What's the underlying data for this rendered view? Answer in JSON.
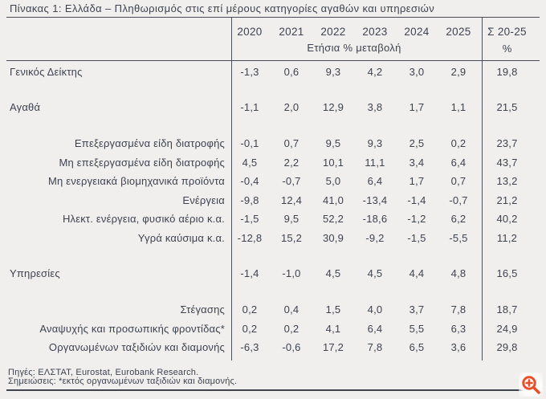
{
  "title": "Πίνακας 1: Ελλάδα – Πληθωρισμός στις επί μέρους κατηγορίες αγαθών και υπηρεσιών",
  "table": {
    "year_headers": [
      "2020",
      "2021",
      "2022",
      "2023",
      "2024",
      "2025"
    ],
    "subheader": "Ετήσια % μεταβολή",
    "sum_header_line1": "Σ 20-25",
    "sum_header_line2": "%",
    "rows": [
      {
        "label": "Γενικός Δείκτης",
        "level": "main",
        "values": [
          "-1,3",
          "0,6",
          "9,3",
          "4,2",
          "3,0",
          "2,9"
        ],
        "sum": "19,8"
      },
      {
        "label": "Αγαθά",
        "level": "main",
        "values": [
          "-1,1",
          "2,0",
          "12,9",
          "3,8",
          "1,7",
          "1,1"
        ],
        "sum": "21,5"
      },
      {
        "label": "Επεξεργασμένα είδη διατροφής",
        "level": "sub",
        "values": [
          "-0,1",
          "0,7",
          "9,5",
          "9,3",
          "2,5",
          "0,2"
        ],
        "sum": "23,7"
      },
      {
        "label": "Μη επεξεργασμένα είδη διατροφής",
        "level": "sub",
        "values": [
          "4,5",
          "2,2",
          "10,1",
          "11,1",
          "3,4",
          "6,4"
        ],
        "sum": "43,7"
      },
      {
        "label": "Μη ενεργειακά βιομηχανικά προϊόντα",
        "level": "sub",
        "values": [
          "-0,4",
          "-0,7",
          "5,0",
          "6,4",
          "1,7",
          "0,7"
        ],
        "sum": "13,2"
      },
      {
        "label": "Ενέργεια",
        "level": "sub",
        "values": [
          "-9,8",
          "12,4",
          "41,0",
          "-13,4",
          "-1,4",
          "-0,7"
        ],
        "sum": "21,2"
      },
      {
        "label": "Ηλεκτ. ενέργεια, φυσικό αέριο κ.α.",
        "level": "sub",
        "values": [
          "-1,5",
          "9,5",
          "52,2",
          "-18,6",
          "-1,2",
          "6,2"
        ],
        "sum": "40,2"
      },
      {
        "label": "Υγρά καύσιμα κ.α.",
        "level": "sub",
        "values": [
          "-12,8",
          "15,2",
          "30,9",
          "-9,2",
          "-1,5",
          "-5,5"
        ],
        "sum": "11,2"
      },
      {
        "label": "Υπηρεσίες",
        "level": "main",
        "values": [
          "-1,4",
          "-1,0",
          "4,5",
          "4,5",
          "4,4",
          "4,8"
        ],
        "sum": "16,5"
      },
      {
        "label": "Στέγασης",
        "level": "sub",
        "values": [
          "0,2",
          "0,4",
          "1,5",
          "4,0",
          "3,7",
          "7,8"
        ],
        "sum": "18,7"
      },
      {
        "label": "Αναψυχής και προσωπικής φροντίδας*",
        "level": "sub",
        "values": [
          "0,2",
          "0,2",
          "4,1",
          "6,4",
          "5,5",
          "6,3"
        ],
        "sum": "24,9"
      },
      {
        "label": "Οργανωμένων ταξιδιών και διαμονής",
        "level": "sub",
        "values": [
          "-6,3",
          "-0,6",
          "17,2",
          "7,8",
          "6,5",
          "3,6"
        ],
        "sum": "29,8"
      }
    ]
  },
  "footer": {
    "sources": "Πηγές: ΕΛΣΤΑΤ, Eurostat, Eurobank Research.",
    "notes": "Σημειώσεις: *εκτός οργανωμένων ταξιδιών και διαμονής."
  },
  "icons": {
    "zoom_in": "zoom-in-magnifier-plus"
  },
  "colors": {
    "background": "#f0efed",
    "text": "#3e4350",
    "line": "#464b56",
    "accent": "#e8502a"
  },
  "chart_data": {
    "type": "table",
    "title": "Πίνακας 1: Ελλάδα – Πληθωρισμός στις επί μέρους κατηγορίες αγαθών και υπηρεσιών",
    "columns": [
      "2020",
      "2021",
      "2022",
      "2023",
      "2024",
      "2025",
      "Σ 20-25 %"
    ],
    "column_group_label": "Ετήσια % μεταβολή",
    "rows": [
      {
        "label": "Γενικός Δείκτης",
        "level": "main",
        "values": [
          -1.3,
          0.6,
          9.3,
          4.2,
          3.0,
          2.9
        ],
        "sum_20_25": 19.8
      },
      {
        "label": "Αγαθά",
        "level": "main",
        "values": [
          -1.1,
          2.0,
          12.9,
          3.8,
          1.7,
          1.1
        ],
        "sum_20_25": 21.5
      },
      {
        "label": "Επεξεργασμένα είδη διατροφής",
        "level": "sub",
        "values": [
          -0.1,
          0.7,
          9.5,
          9.3,
          2.5,
          0.2
        ],
        "sum_20_25": 23.7
      },
      {
        "label": "Μη επεξεργασμένα είδη διατροφής",
        "level": "sub",
        "values": [
          4.5,
          2.2,
          10.1,
          11.1,
          3.4,
          6.4
        ],
        "sum_20_25": 43.7
      },
      {
        "label": "Μη ενεργειακά βιομηχανικά προϊόντα",
        "level": "sub",
        "values": [
          -0.4,
          -0.7,
          5.0,
          6.4,
          1.7,
          0.7
        ],
        "sum_20_25": 13.2
      },
      {
        "label": "Ενέργεια",
        "level": "sub",
        "values": [
          -9.8,
          12.4,
          41.0,
          -13.4,
          -1.4,
          -0.7
        ],
        "sum_20_25": 21.2
      },
      {
        "label": "Ηλεκτ. ενέργεια, φυσικό αέριο κ.α.",
        "level": "sub",
        "values": [
          -1.5,
          9.5,
          52.2,
          -18.6,
          -1.2,
          6.2
        ],
        "sum_20_25": 40.2
      },
      {
        "label": "Υγρά καύσιμα κ.α.",
        "level": "sub",
        "values": [
          -12.8,
          15.2,
          30.9,
          -9.2,
          -1.5,
          -5.5
        ],
        "sum_20_25": 11.2
      },
      {
        "label": "Υπηρεσίες",
        "level": "main",
        "values": [
          -1.4,
          -1.0,
          4.5,
          4.5,
          4.4,
          4.8
        ],
        "sum_20_25": 16.5
      },
      {
        "label": "Στέγασης",
        "level": "sub",
        "values": [
          0.2,
          0.4,
          1.5,
          4.0,
          3.7,
          7.8
        ],
        "sum_20_25": 18.7
      },
      {
        "label": "Αναψυχής και προσωπικής φροντίδας*",
        "level": "sub",
        "values": [
          0.2,
          0.2,
          4.1,
          6.4,
          5.5,
          6.3
        ],
        "sum_20_25": 24.9
      },
      {
        "label": "Οργανωμένων ταξιδιών και διαμονής",
        "level": "sub",
        "values": [
          -6.3,
          -0.6,
          17.2,
          7.8,
          6.5,
          3.6
        ],
        "sum_20_25": 29.8
      }
    ],
    "notes": [
      "Πηγές: ΕΛΣΤΑΤ, Eurostat, Eurobank Research.",
      "Σημειώσεις: *εκτός οργανωμένων ταξιδιών και διαμονής."
    ]
  }
}
